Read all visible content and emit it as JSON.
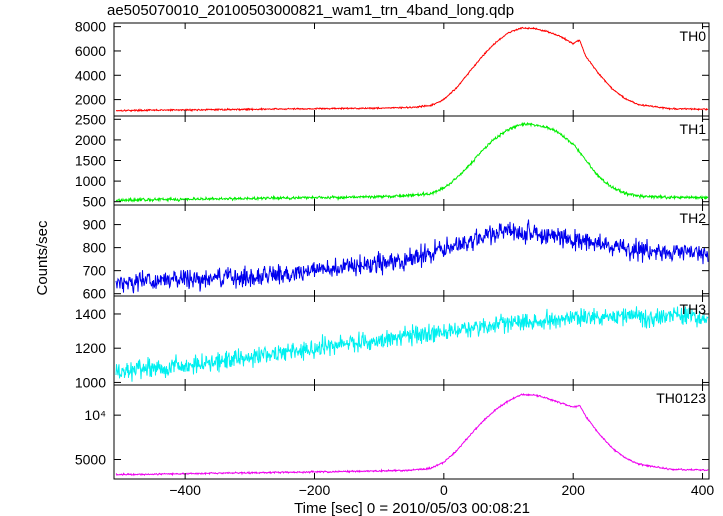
{
  "title": "ae505070010_20100503000821_wam1_trn_4band_long.qdp",
  "chart_data": {
    "type": "line",
    "title": "ae505070010_20100503000821_wam1_trn_4band_long.qdp",
    "xlabel": "Time [sec] 0 = 2010/05/03 00:08:21",
    "ylabel": "Counts/sec",
    "xlim": [
      -510,
      410
    ],
    "x_ticks": [
      -400,
      -200,
      0,
      200,
      400
    ],
    "x_tick_labels": [
      "−400",
      "−200",
      "0",
      "200",
      "400"
    ],
    "grid": false,
    "panels": [
      {
        "name": "TH0",
        "color": "#ff0000",
        "ylim": [
          650,
          8300
        ],
        "y_ticks": [
          2000,
          4000,
          6000,
          8000
        ],
        "y_tick_labels": [
          "2000",
          "4000",
          "6000",
          "8000"
        ],
        "noise": 60,
        "x": [
          -505,
          -400,
          -300,
          -200,
          -100,
          -50,
          -20,
          0,
          20,
          40,
          60,
          80,
          100,
          120,
          140,
          160,
          180,
          200,
          210,
          220,
          240,
          260,
          280,
          300,
          350,
          405
        ],
        "y": [
          1100,
          1150,
          1200,
          1250,
          1300,
          1350,
          1500,
          2000,
          3000,
          4300,
          5600,
          6700,
          7500,
          7900,
          7850,
          7600,
          7200,
          6600,
          6900,
          5500,
          4100,
          2900,
          2100,
          1600,
          1250,
          1200
        ]
      },
      {
        "name": "TH1",
        "color": "#00ee00",
        "ylim": [
          420,
          2580
        ],
        "y_ticks": [
          500,
          1000,
          1500,
          2000,
          2500
        ],
        "y_tick_labels": [
          "500",
          "1000",
          "1500",
          "2000",
          "2500"
        ],
        "noise": 35,
        "x": [
          -505,
          -400,
          -300,
          -200,
          -100,
          -50,
          -20,
          0,
          20,
          40,
          60,
          80,
          100,
          120,
          140,
          160,
          180,
          200,
          220,
          240,
          260,
          280,
          300,
          350,
          405
        ],
        "y": [
          540,
          560,
          580,
          600,
          620,
          650,
          700,
          830,
          1080,
          1400,
          1750,
          2050,
          2250,
          2380,
          2370,
          2300,
          2150,
          1900,
          1500,
          1100,
          850,
          700,
          640,
          610,
          600
        ]
      },
      {
        "name": "TH2",
        "color": "#0000ee",
        "ylim": [
          590,
          985
        ],
        "y_ticks": [
          600,
          700,
          800,
          900
        ],
        "y_tick_labels": [
          "600",
          "700",
          "800",
          "900"
        ],
        "noise": 42,
        "x": [
          -505,
          -400,
          -300,
          -200,
          -100,
          -50,
          0,
          50,
          100,
          150,
          200,
          250,
          300,
          350,
          405
        ],
        "y": [
          650,
          660,
          675,
          700,
          730,
          755,
          790,
          840,
          875,
          860,
          835,
          810,
          790,
          780,
          775
        ]
      },
      {
        "name": "TH3",
        "color": "#00f0f0",
        "ylim": [
          985,
          1505
        ],
        "y_ticks": [
          1000,
          1200,
          1400
        ],
        "y_tick_labels": [
          "1000",
          "1200",
          "1400"
        ],
        "noise": 55,
        "x": [
          -505,
          -400,
          -300,
          -200,
          -100,
          0,
          100,
          200,
          300,
          405
        ],
        "y": [
          1060,
          1100,
          1150,
          1200,
          1250,
          1300,
          1345,
          1380,
          1390,
          1380
        ]
      },
      {
        "name": "TH0123",
        "color": "#ee00ee",
        "ylim": [
          2800,
          13400
        ],
        "y_ticks": [
          5000,
          10000
        ],
        "y_tick_labels": [
          "5000",
          "10⁴"
        ],
        "noise": 90,
        "x": [
          -505,
          -400,
          -300,
          -200,
          -100,
          -50,
          -20,
          0,
          20,
          40,
          60,
          80,
          100,
          120,
          140,
          160,
          180,
          200,
          210,
          220,
          240,
          260,
          280,
          300,
          350,
          405
        ],
        "y": [
          3300,
          3400,
          3500,
          3600,
          3700,
          3800,
          4000,
          4700,
          6000,
          7700,
          9300,
          10600,
          11600,
          12300,
          12300,
          11900,
          11400,
          10900,
          11100,
          9800,
          7900,
          6300,
          5200,
          4500,
          3900,
          3800
        ]
      }
    ]
  }
}
